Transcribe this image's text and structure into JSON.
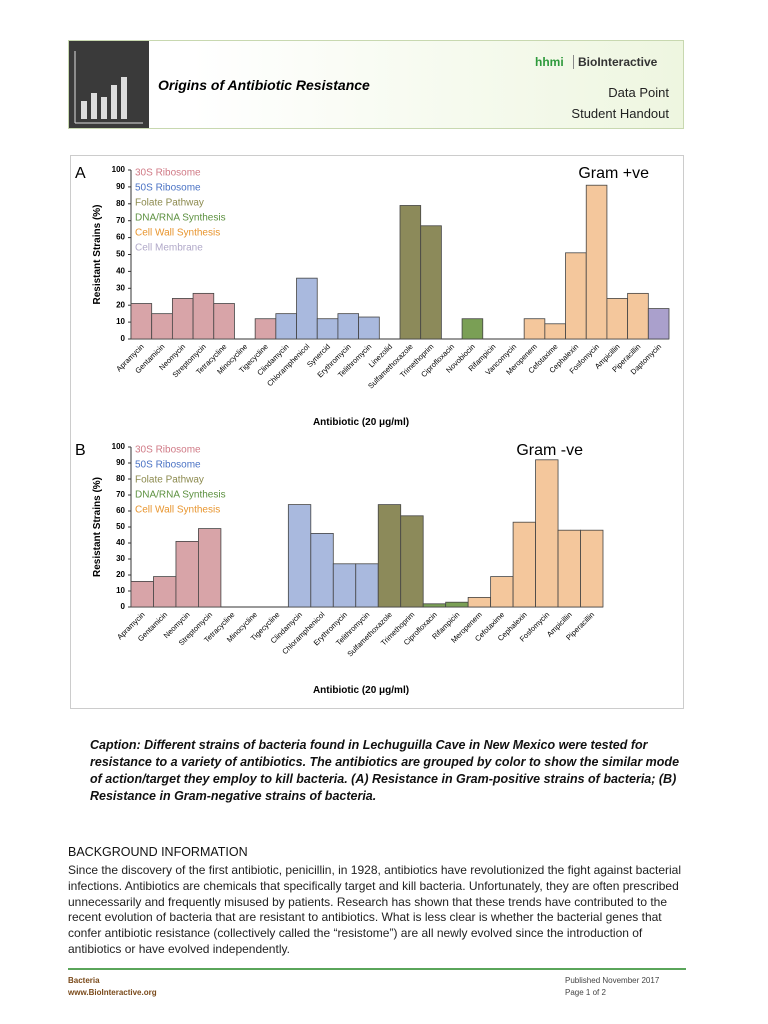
{
  "header": {
    "title": "Origins of Antibiotic Resistance",
    "logo_left": "hhmi",
    "logo_right": "BioInteractive",
    "doc_type": "Data Point",
    "audience": "Student Handout"
  },
  "chart_data": [
    {
      "type": "bar",
      "panel": "A",
      "title": "Gram +ve",
      "ylabel": "Resistant Strains (%)",
      "xlabel": "Antibiotic (20 μg/ml)",
      "legend": [
        {
          "name": "30S Ribosome",
          "color": "#d07a86"
        },
        {
          "name": "50S Ribosome",
          "color": "#4a72c4"
        },
        {
          "name": "Folate Pathway",
          "color": "#8c8a4e"
        },
        {
          "name": "DNA/RNA Synthesis",
          "color": "#5d9140"
        },
        {
          "name": "Cell Wall Synthesis",
          "color": "#e8952e"
        },
        {
          "name": "Cell Membrane",
          "color": "#b0a8c8"
        }
      ],
      "categories": [
        "Apramycin",
        "Gentamicin",
        "Neomycin",
        "Streptomycin",
        "Tetracycline",
        "Minocycline",
        "Tigecycline",
        "Clindamycin",
        "Chloramphenicol",
        "Synercid",
        "Erythromycin",
        "Telithromycin",
        "Linezolid",
        "Sulfamethoxazole",
        "Trimethoprim",
        "Ciprofloxacin",
        "Novobiocin",
        "Rifampicin",
        "Vancomycin",
        "Meropenem",
        "Cefotaxime",
        "Cephalexin",
        "Fosfomycin",
        "Ampicillin",
        "Piperacillin",
        "Daptomycin"
      ],
      "values": [
        21,
        15,
        24,
        27,
        21,
        0,
        12,
        15,
        36,
        12,
        15,
        13,
        0,
        79,
        67,
        0,
        12,
        0,
        0,
        12,
        9,
        51,
        91,
        24,
        27,
        18
      ],
      "colors": [
        "#d8a4a8",
        "#d8a4a8",
        "#d8a4a8",
        "#d8a4a8",
        "#d8a4a8",
        "#d8a4a8",
        "#d8a4a8",
        "#a9b9de",
        "#a9b9de",
        "#a9b9de",
        "#a9b9de",
        "#a9b9de",
        "#a9b9de",
        "#8c8a5a",
        "#8c8a5a",
        "#7a9f55",
        "#7a9f55",
        "#7a9f55",
        "#f4c79c",
        "#f4c79c",
        "#f4c79c",
        "#f4c79c",
        "#f4c79c",
        "#f4c79c",
        "#f4c79c",
        "#aaa0cc"
      ],
      "ylim": [
        0,
        100
      ],
      "yticks": [
        0,
        10,
        20,
        30,
        40,
        50,
        60,
        70,
        80,
        90,
        100
      ]
    },
    {
      "type": "bar",
      "panel": "B",
      "title": "Gram -ve",
      "ylabel": "Resistant Strains (%)",
      "xlabel": "Antibiotic (20 μg/ml)",
      "legend": [
        {
          "name": "30S Ribosome",
          "color": "#d07a86"
        },
        {
          "name": "50S Ribosome",
          "color": "#4a72c4"
        },
        {
          "name": "Folate Pathway",
          "color": "#8c8a4e"
        },
        {
          "name": "DNA/RNA Synthesis",
          "color": "#5d9140"
        },
        {
          "name": "Cell Wall Synthesis",
          "color": "#e8952e"
        }
      ],
      "categories": [
        "Apramycin",
        "Gentamicin",
        "Neomycin",
        "Streptomycin",
        "Tetracycline",
        "Minocycline",
        "Tigecycline",
        "Clindamycin",
        "Chloramphenicol",
        "Erythromycin",
        "Telithromycin",
        "Sulfamethoxazole",
        "Trimethoprim",
        "Ciprofloxacin",
        "Rifampicin",
        "Meropenem",
        "Cefotaxime",
        "Cephalexin",
        "Fosfomycin",
        "Ampicillin",
        "Piperacillin"
      ],
      "values": [
        16,
        19,
        41,
        49,
        0,
        0,
        0,
        64,
        46,
        27,
        27,
        64,
        57,
        2,
        3,
        6,
        19,
        53,
        92,
        48,
        48
      ],
      "colors": [
        "#d8a4a8",
        "#d8a4a8",
        "#d8a4a8",
        "#d8a4a8",
        "#d8a4a8",
        "#d8a4a8",
        "#d8a4a8",
        "#a9b9de",
        "#a9b9de",
        "#a9b9de",
        "#a9b9de",
        "#8c8a5a",
        "#8c8a5a",
        "#7a9f55",
        "#7a9f55",
        "#f4c79c",
        "#f4c79c",
        "#f4c79c",
        "#f4c79c",
        "#f4c79c",
        "#f4c79c"
      ],
      "ylim": [
        0,
        100
      ],
      "yticks": [
        0,
        10,
        20,
        30,
        40,
        50,
        60,
        70,
        80,
        90,
        100
      ]
    }
  ],
  "caption": "Caption: Different strains of bacteria found in Lechuguilla Cave in New Mexico were tested for resistance to a variety of antibiotics. The antibiotics are grouped by color to show the similar mode of action/target they employ to kill bacteria. (A) Resistance in Gram-positive strains of bacteria; (B) Resistance in Gram-negative strains of bacteria.",
  "background": {
    "heading": "BACKGROUND INFORMATION",
    "text": "Since the discovery of the first antibiotic, penicillin, in 1928, antibiotics have revolutionized the fight against bacterial infections. Antibiotics are chemicals that specifically target and kill bacteria. Unfortunately, they are often prescribed unnecessarily and frequently misused by patients. Research has shown that these trends have contributed to the recent evolution of bacteria that are resistant to antibiotics. What is less clear is whether the bacterial genes that confer antibiotic resistance (collectively called the “resistome”) are all newly evolved since the introduction of antibiotics or have evolved independently."
  },
  "footer": {
    "topic": "Bacteria",
    "url": "www.BioInteractive.org",
    "published": "Published November 2017",
    "page": "Page 1 of 2"
  }
}
